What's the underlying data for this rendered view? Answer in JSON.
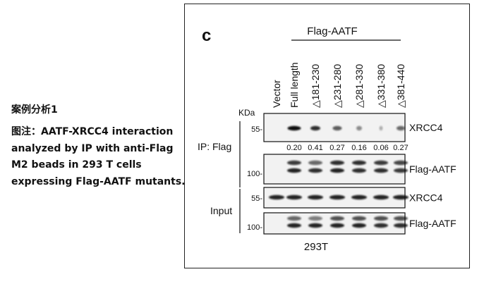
{
  "caption": {
    "case_title": "案例分析1",
    "text": "图注：AATF-XRCC4 interaction analyzed by IP with anti-Flag M2 beads in 293 T cells expressing Flag-AATF mutants."
  },
  "figure": {
    "panel_label": "c",
    "group_label": "Flag-AATF",
    "lanes": [
      "Vector",
      "Full length",
      "△181-230",
      "△231-280",
      "△281-330",
      "△331-380",
      "△381-440"
    ],
    "kda_label": "KDa",
    "ip_label": "IP: Flag",
    "input_label": "Input",
    "marker_55": "55-",
    "marker_100": "100-",
    "blots": [
      {
        "label": "XRCC4",
        "section": "ip"
      },
      {
        "label": "Flag-AATF",
        "section": "ip"
      },
      {
        "label": "XRCC4",
        "section": "input"
      },
      {
        "label": "Flag-AATF",
        "section": "input"
      }
    ],
    "ip_xrcc4_quant": [
      "0.20",
      "0.41",
      "0.27",
      "0.16",
      "0.06",
      "0.27"
    ],
    "cell_line": "293T"
  }
}
